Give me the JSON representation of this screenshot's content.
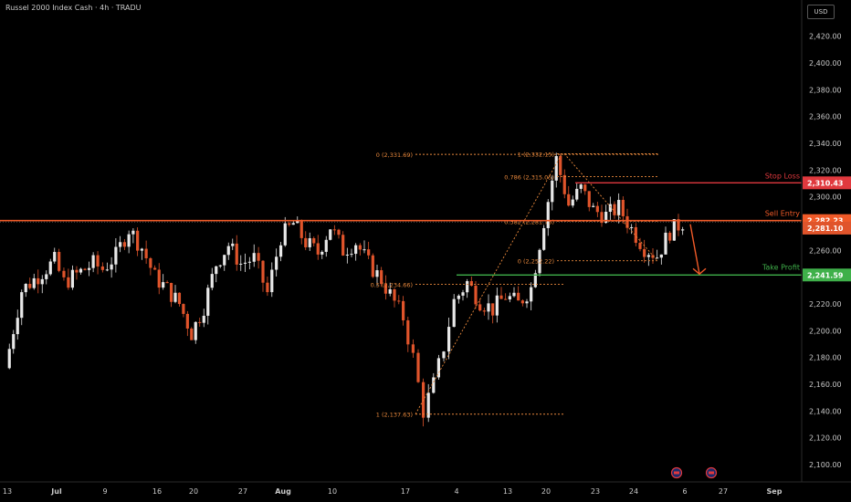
{
  "header": {
    "title": "Russel 2000 Index Cash · 4h · TRADU",
    "currency": "USD"
  },
  "colors": {
    "background": "#000000",
    "up_candle": "#e8e8e8",
    "down_candle": "#e0542b",
    "fib": "#e8883c",
    "stop_loss": "#e0393e",
    "sell_entry": "#f05a28",
    "take_profit": "#3fb04a",
    "price_tag": "#e0542b",
    "arrow": "#f05a28"
  },
  "chart_data": {
    "type": "candlestick",
    "y_axis": {
      "ticks": [
        2100,
        2120,
        2140,
        2160,
        2180,
        2200,
        2220,
        2240,
        2260,
        2280,
        2300,
        2320,
        2340,
        2360,
        2380,
        2400,
        2420
      ],
      "tick_labels": [
        "2,100.00",
        "2,120.00",
        "2,140.00",
        "2,160.00",
        "2,180.00",
        "2,200.00",
        "2,220.00",
        "2,240.00",
        "2,260.00",
        "2,280.00",
        "2,300.00",
        "2,320.00",
        "2,340.00",
        "2,360.00",
        "2,380.00",
        "2,400.00",
        "2,420.00"
      ],
      "ylim": [
        2087,
        2432
      ]
    },
    "x_axis": {
      "labels": [
        "Jul",
        "4",
        "9",
        "13",
        "16",
        "20",
        "23",
        "27",
        "Aug",
        "6",
        "10",
        "13",
        "17",
        "20",
        "24",
        "27",
        "Sep"
      ],
      "bold": [
        "Jul",
        "Aug",
        "Sep"
      ]
    },
    "price_path": [
      [
        "Jul 1",
        2172
      ],
      [
        "Jul 2",
        2230
      ],
      [
        "Jul 4",
        2252
      ],
      [
        "Jul 5",
        2236
      ],
      [
        "Jul 8",
        2250
      ],
      [
        "Jul 9",
        2246
      ],
      [
        "Jul 10",
        2256
      ],
      [
        "Jul 11",
        2276
      ],
      [
        "Jul 12",
        2262
      ],
      [
        "Jul 13",
        2240
      ],
      [
        "Jul 14",
        2231
      ],
      [
        "Jul 15",
        2220
      ],
      [
        "Jul 16",
        2198
      ],
      [
        "Jul 17",
        2218
      ],
      [
        "Jul 18",
        2250
      ],
      [
        "Jul 19",
        2264
      ],
      [
        "Jul 20",
        2250
      ],
      [
        "Jul 21",
        2254
      ],
      [
        "Jul 22",
        2228
      ],
      [
        "Jul 23",
        2270
      ],
      [
        "Jul 24",
        2280
      ],
      [
        "Jul 25",
        2266
      ],
      [
        "Jul 26",
        2258
      ],
      [
        "Jul 27",
        2278
      ],
      [
        "Jul 28",
        2260
      ],
      [
        "Jul 29",
        2266
      ],
      [
        "Jul 30",
        2250
      ],
      [
        "Jul 31",
        2238
      ],
      [
        "Aug 1",
        2210
      ],
      [
        "Aug 2",
        2180
      ],
      [
        "Aug 3",
        2140
      ],
      [
        "Aug 4",
        2160
      ],
      [
        "Aug 5",
        2188
      ],
      [
        "Aug 6",
        2222
      ],
      [
        "Aug 7",
        2236
      ],
      [
        "Aug 8",
        2222
      ],
      [
        "Aug 9",
        2216
      ],
      [
        "Aug 10",
        2226
      ],
      [
        "Aug 11",
        2220
      ],
      [
        "Aug 12",
        2232
      ],
      [
        "Aug 13",
        2282
      ],
      [
        "Aug 14",
        2328
      ],
      [
        "Aug 15",
        2294
      ],
      [
        "Aug 16",
        2306
      ],
      [
        "Aug 17",
        2290
      ],
      [
        "Aug 18",
        2286
      ],
      [
        "Aug 19",
        2292
      ],
      [
        "Aug 20",
        2276
      ],
      [
        "Aug 21",
        2262
      ],
      [
        "Aug 22",
        2256
      ],
      [
        "Aug 23",
        2274
      ],
      [
        "Aug 24",
        2281
      ]
    ],
    "fibonacci": [
      {
        "label": "0 (2,331.69)",
        "value": 2331.69
      },
      {
        "label": "1 (2,332.15)",
        "value": 2332.15
      },
      {
        "label": "0.786 (2,315.05)",
        "value": 2315.05
      },
      {
        "label": "0.382 (2,281.75)",
        "value": 2281.75
      },
      {
        "label": "0 (2,252.22)",
        "value": 2252.22
      },
      {
        "label": "0.5 (2,234.66)",
        "value": 2234.66
      },
      {
        "label": "1 (2,137.63)",
        "value": 2137.63
      }
    ],
    "levels": {
      "stop_loss": {
        "label": "Stop Loss",
        "value": 2310.43,
        "tag": "2,310.43"
      },
      "sell_entry": {
        "label": "Sell Entry",
        "value": 2282.23,
        "tag": "2,282.23"
      },
      "current": {
        "value": 2281.1,
        "tag": "2,281.10"
      },
      "take_profit": {
        "label": "Take Profit",
        "value": 2241.59,
        "tag": "2,241.59"
      }
    }
  }
}
